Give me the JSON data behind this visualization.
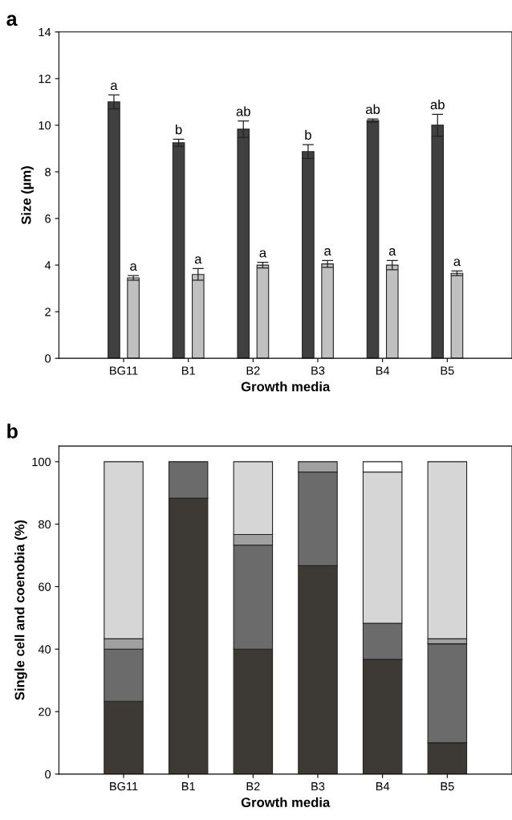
{
  "chart_data": [
    {
      "type": "bar",
      "categories": [
        "BG11",
        "B1",
        "B2",
        "B3",
        "B4",
        "B5"
      ],
      "xlabel": "Growth media",
      "ylabel": "Size (µm)",
      "ylim": [
        0,
        14
      ],
      "yticks": [
        0,
        2,
        4,
        6,
        8,
        10,
        12,
        14
      ],
      "grid": false,
      "annotations": [
        "a"
      ],
      "series": [
        {
          "color": "#404040",
          "values": [
            11.0,
            9.25,
            9.83,
            8.87,
            10.2,
            10.0
          ],
          "errors": [
            0.3,
            0.15,
            0.35,
            0.3,
            0.07,
            0.47
          ],
          "value_labels": [
            "a",
            "b",
            "ab",
            "b",
            "ab",
            "ab"
          ]
        },
        {
          "color": "#c0c0c0",
          "values": [
            3.45,
            3.6,
            4.0,
            4.05,
            4.0,
            3.65
          ],
          "errors": [
            0.1,
            0.25,
            0.12,
            0.15,
            0.2,
            0.1
          ],
          "value_labels": [
            "a",
            "a",
            "a",
            "a",
            "a",
            "a"
          ]
        }
      ]
    },
    {
      "type": "bar",
      "stacked": true,
      "categories": [
        "BG11",
        "B1",
        "B2",
        "B3",
        "B4",
        "B5"
      ],
      "xlabel": "Growth media",
      "ylabel": "Single cell and coenobia (%)",
      "ylim": [
        0,
        105
      ],
      "yticks": [
        0,
        20,
        40,
        60,
        80,
        100
      ],
      "grid": false,
      "annotations": [
        "b"
      ],
      "series": [
        {
          "color": "#3d3935",
          "values": [
            23.3,
            88.3,
            40.0,
            66.7,
            36.7,
            10.0
          ]
        },
        {
          "color": "#6b6b6b",
          "values": [
            16.7,
            11.7,
            33.3,
            30.0,
            11.6,
            31.7
          ]
        },
        {
          "color": "#a0a0a0",
          "values": [
            3.3,
            null,
            3.4,
            3.3,
            null,
            1.6
          ]
        },
        {
          "color": "#d6d6d6",
          "values": [
            56.7,
            null,
            23.3,
            null,
            48.4,
            56.7
          ]
        },
        {
          "color": "#ffffff",
          "values": [
            null,
            null,
            null,
            null,
            3.3,
            null
          ]
        }
      ]
    }
  ]
}
